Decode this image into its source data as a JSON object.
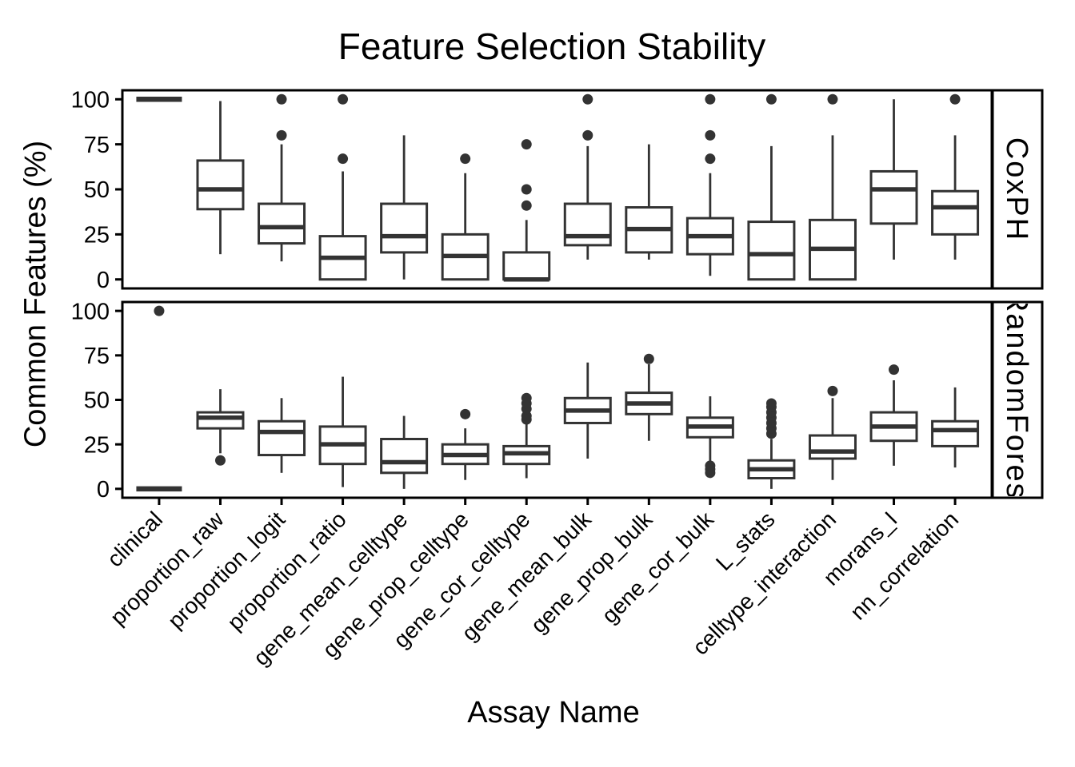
{
  "chart_data": {
    "type": "boxplot",
    "title": "Feature Selection Stability",
    "xlabel": "Assay Name",
    "ylabel": "Common Features (%)",
    "ylim": [
      0,
      100
    ],
    "yticks": [
      0,
      25,
      50,
      75,
      100
    ],
    "grid": false,
    "legend": "none",
    "facet_position": "right",
    "categories": [
      "clinical",
      "proportion_raw",
      "proportion_logit",
      "proportion_ratio",
      "gene_mean_celltype",
      "gene_prop_celltype",
      "gene_cor_celltype",
      "gene_mean_bulk",
      "gene_prop_bulk",
      "gene_cor_bulk",
      "L_stats",
      "celltype_interaction",
      "morans_I",
      "nn_correlation"
    ],
    "colors": {
      "box_stroke": "#333333",
      "panel_border": "#000000",
      "background": "#ffffff"
    },
    "facets": [
      {
        "label": "CoxPH",
        "boxes": [
          {
            "category": "clinical",
            "lo": 100,
            "q1": 100,
            "med": 100,
            "q3": 100,
            "hi": 100,
            "outliers": []
          },
          {
            "category": "proportion_raw",
            "lo": 14,
            "q1": 39,
            "med": 50,
            "q3": 66,
            "hi": 99,
            "outliers": []
          },
          {
            "category": "proportion_logit",
            "lo": 10,
            "q1": 20,
            "med": 29,
            "q3": 42,
            "hi": 75,
            "outliers": [
              80,
              100
            ]
          },
          {
            "category": "proportion_ratio",
            "lo": 0,
            "q1": 0,
            "med": 12,
            "q3": 24,
            "hi": 60,
            "outliers": [
              67,
              100
            ]
          },
          {
            "category": "gene_mean_celltype",
            "lo": 0,
            "q1": 15,
            "med": 24,
            "q3": 42,
            "hi": 80,
            "outliers": []
          },
          {
            "category": "gene_prop_celltype",
            "lo": 0,
            "q1": 0,
            "med": 13,
            "q3": 25,
            "hi": 59,
            "outliers": [
              67
            ]
          },
          {
            "category": "gene_cor_celltype",
            "lo": 0,
            "q1": 0,
            "med": 0,
            "q3": 15,
            "hi": 33,
            "outliers": [
              41,
              50,
              75
            ]
          },
          {
            "category": "gene_mean_bulk",
            "lo": 11,
            "q1": 19,
            "med": 24,
            "q3": 42,
            "hi": 74,
            "outliers": [
              80,
              100
            ]
          },
          {
            "category": "gene_prop_bulk",
            "lo": 11,
            "q1": 15,
            "med": 28,
            "q3": 40,
            "hi": 75,
            "outliers": []
          },
          {
            "category": "gene_cor_bulk",
            "lo": 2,
            "q1": 14,
            "med": 24,
            "q3": 34,
            "hi": 59,
            "outliers": [
              67,
              80,
              100
            ]
          },
          {
            "category": "L_stats",
            "lo": 0,
            "q1": 0,
            "med": 14,
            "q3": 32,
            "hi": 74,
            "outliers": [
              100
            ]
          },
          {
            "category": "celltype_interaction",
            "lo": 0,
            "q1": 0,
            "med": 17,
            "q3": 33,
            "hi": 80,
            "outliers": [
              100
            ]
          },
          {
            "category": "morans_I",
            "lo": 11,
            "q1": 31,
            "med": 50,
            "q3": 60,
            "hi": 100,
            "outliers": []
          },
          {
            "category": "nn_correlation",
            "lo": 11,
            "q1": 25,
            "med": 40,
            "q3": 49,
            "hi": 80,
            "outliers": [
              100
            ]
          }
        ]
      },
      {
        "label": "RandomForest",
        "boxes": [
          {
            "category": "clinical",
            "lo": 0,
            "q1": 0,
            "med": 0,
            "q3": 0,
            "hi": 0,
            "outliers": [
              100
            ]
          },
          {
            "category": "proportion_raw",
            "lo": 20,
            "q1": 34,
            "med": 40,
            "q3": 43,
            "hi": 56,
            "outliers": [
              16
            ]
          },
          {
            "category": "proportion_logit",
            "lo": 9,
            "q1": 19,
            "med": 32,
            "q3": 38,
            "hi": 51,
            "outliers": []
          },
          {
            "category": "proportion_ratio",
            "lo": 1,
            "q1": 14,
            "med": 25,
            "q3": 35,
            "hi": 63,
            "outliers": []
          },
          {
            "category": "gene_mean_celltype",
            "lo": 0,
            "q1": 9,
            "med": 15,
            "q3": 28,
            "hi": 41,
            "outliers": []
          },
          {
            "category": "gene_prop_celltype",
            "lo": 5,
            "q1": 14,
            "med": 19,
            "q3": 25,
            "hi": 34,
            "outliers": [
              42
            ]
          },
          {
            "category": "gene_cor_celltype",
            "lo": 6,
            "q1": 14,
            "med": 20,
            "q3": 24,
            "hi": 37,
            "outliers": [
              39,
              41,
              45,
              48,
              51
            ]
          },
          {
            "category": "gene_mean_bulk",
            "lo": 17,
            "q1": 37,
            "med": 44,
            "q3": 51,
            "hi": 71,
            "outliers": []
          },
          {
            "category": "gene_prop_bulk",
            "lo": 27,
            "q1": 42,
            "med": 48,
            "q3": 54,
            "hi": 70,
            "outliers": [
              73
            ]
          },
          {
            "category": "gene_cor_bulk",
            "lo": 15,
            "q1": 29,
            "med": 35,
            "q3": 40,
            "hi": 52,
            "outliers": [
              9,
              11,
              13
            ]
          },
          {
            "category": "L_stats",
            "lo": 0,
            "q1": 6,
            "med": 11,
            "q3": 16,
            "hi": 28,
            "outliers": [
              31,
              34,
              37,
              40,
              43,
              46,
              48
            ]
          },
          {
            "category": "celltype_interaction",
            "lo": 5,
            "q1": 17,
            "med": 21,
            "q3": 30,
            "hi": 51,
            "outliers": [
              55
            ]
          },
          {
            "category": "morans_I",
            "lo": 13,
            "q1": 27,
            "med": 35,
            "q3": 43,
            "hi": 61,
            "outliers": [
              67
            ]
          },
          {
            "category": "nn_correlation",
            "lo": 12,
            "q1": 24,
            "med": 33,
            "q3": 38,
            "hi": 57,
            "outliers": []
          }
        ]
      }
    ]
  }
}
